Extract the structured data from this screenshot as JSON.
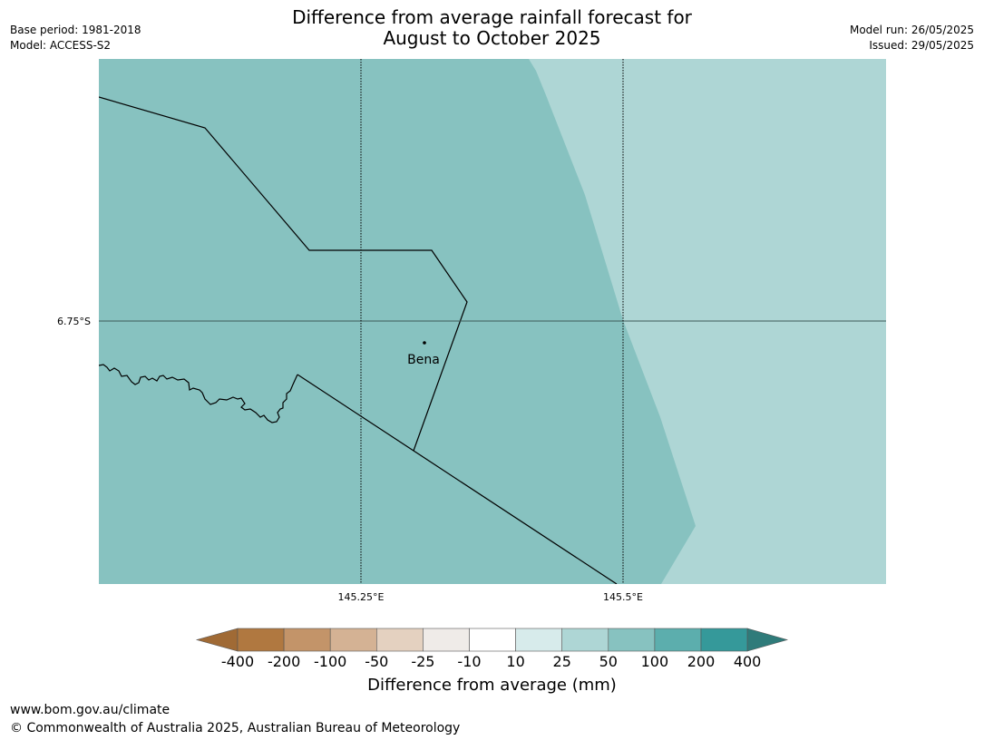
{
  "title": {
    "line1": "Difference from average rainfall forecast for",
    "line2": "August to October 2025"
  },
  "meta_left": {
    "base_period": "Base period: 1981-2018",
    "model": "Model: ACCESS-S2"
  },
  "meta_right": {
    "model_run": "Model run: 26/05/2025",
    "issued": "Issued: 29/05/2025"
  },
  "map": {
    "lat_label": "6.75°S",
    "lon_labels": [
      "145.25°E",
      "145.5°E"
    ],
    "place_label": "Bena",
    "colors": {
      "zone_50_100": "#87c2c0",
      "zone_25_50": "#aed6d5"
    }
  },
  "legend": {
    "ticks": [
      "-400",
      "-200",
      "-100",
      "-50",
      "-25",
      "-10",
      "10",
      "25",
      "50",
      "100",
      "200",
      "400"
    ],
    "colors": [
      "#a06a35",
      "#b07840",
      "#c39469",
      "#d4b294",
      "#e4d1c0",
      "#efebe8",
      "#ffffff",
      "#d7ebeb",
      "#aed6d5",
      "#87c2c0",
      "#5caead",
      "#35999a",
      "#2f7b7a"
    ],
    "title": "Difference from average (mm)"
  },
  "footer": {
    "url": "www.bom.gov.au/climate",
    "copyright": "© Commonwealth of Australia 2025, Australian Bureau of Meteorology"
  }
}
